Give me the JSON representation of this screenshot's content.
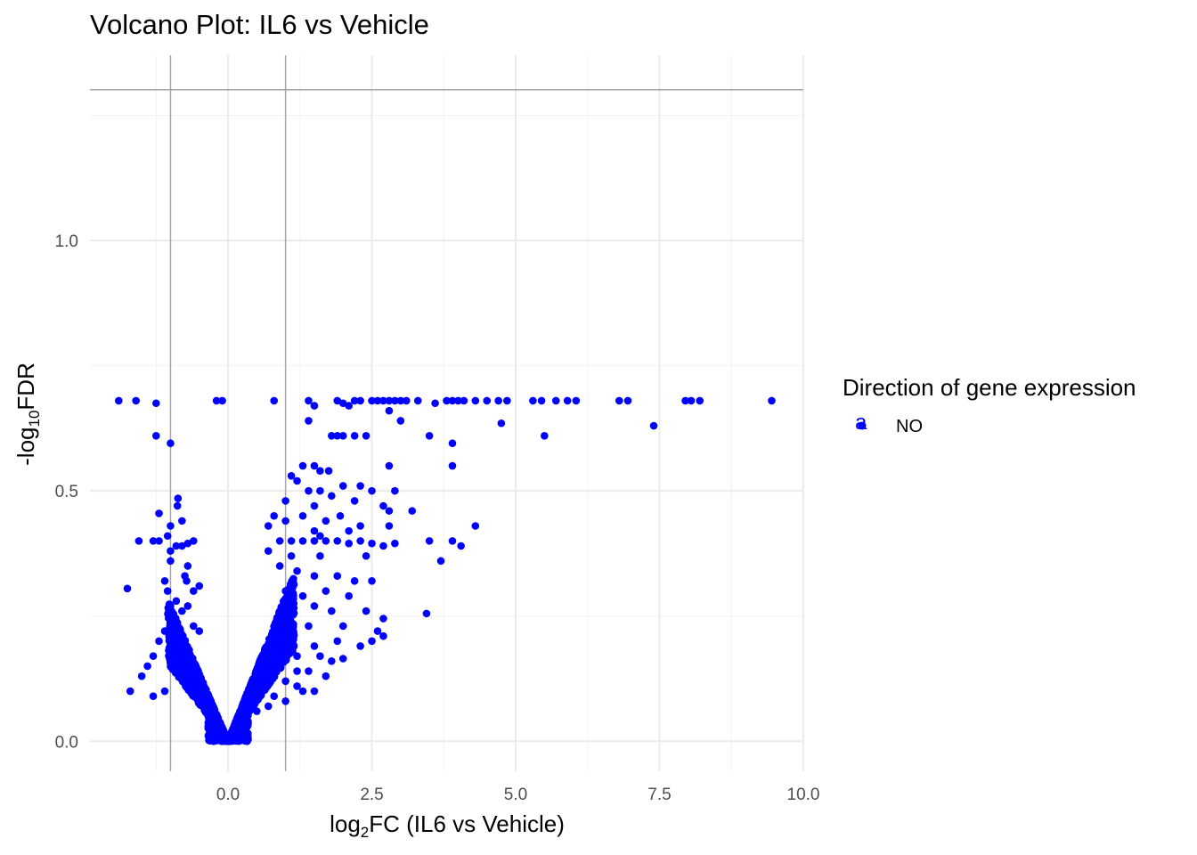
{
  "chart_data": {
    "type": "scatter",
    "title": "Volcano Plot: IL6 vs Vehicle",
    "xlabel_main": "log",
    "xlabel_sub": "2",
    "xlabel_rest": "FC (IL6 vs Vehicle)",
    "ylabel_main": "-log",
    "ylabel_sub": "10",
    "ylabel_rest": "FDR",
    "xlim": [
      -2.4,
      10.0
    ],
    "ylim": [
      -0.06,
      1.37
    ],
    "x_ticks": [
      "0.0",
      "2.5",
      "5.0",
      "7.5",
      "10.0"
    ],
    "x_tick_values": [
      0,
      2.5,
      5,
      7.5,
      10
    ],
    "x_minor_values": [
      -1.25,
      1.25,
      3.75,
      6.25,
      8.75
    ],
    "y_ticks": [
      "0.0",
      "0.5",
      "1.0"
    ],
    "y_tick_values": [
      0,
      0.5,
      1.0
    ],
    "y_minor_values": [
      0.25,
      0.75,
      1.25
    ],
    "threshold_lines": {
      "x": [
        -1,
        1
      ],
      "y": 1.301
    },
    "grid": true,
    "legend": {
      "title": "Direction of gene expression",
      "position": "right",
      "entries": [
        {
          "key_glyph": "a",
          "label": "NO",
          "color": "#0000ff"
        }
      ]
    },
    "point_color": "#0000ff",
    "series": [
      {
        "name": "NO",
        "points": [
          [
            -1.9,
            0.68
          ],
          [
            -1.6,
            0.68
          ],
          [
            -1.25,
            0.675
          ],
          [
            -0.2,
            0.68
          ],
          [
            -0.1,
            0.68
          ],
          [
            -1.25,
            0.61
          ],
          [
            -1.0,
            0.595
          ],
          [
            -0.87,
            0.485
          ],
          [
            -0.88,
            0.47
          ],
          [
            -1.2,
            0.455
          ],
          [
            -0.8,
            0.44
          ],
          [
            -1.0,
            0.43
          ],
          [
            -1.05,
            0.41
          ],
          [
            -1.55,
            0.4
          ],
          [
            -1.3,
            0.4
          ],
          [
            -1.2,
            0.4
          ],
          [
            -0.9,
            0.39
          ],
          [
            -0.7,
            0.395
          ],
          [
            -0.6,
            0.4
          ],
          [
            -0.8,
            0.39
          ],
          [
            -1.0,
            0.38
          ],
          [
            -1.0,
            0.36
          ],
          [
            -0.7,
            0.35
          ],
          [
            -0.75,
            0.33
          ],
          [
            -0.72,
            0.32
          ],
          [
            -1.1,
            0.32
          ],
          [
            -0.5,
            0.31
          ],
          [
            -0.6,
            0.3
          ],
          [
            -1.75,
            0.305
          ],
          [
            -1.05,
            0.3
          ],
          [
            -0.9,
            0.28
          ],
          [
            -1.0,
            0.27
          ],
          [
            -0.8,
            0.26
          ],
          [
            -0.7,
            0.27
          ],
          [
            -1.1,
            0.22
          ],
          [
            -1.2,
            0.2
          ],
          [
            -1.3,
            0.17
          ],
          [
            -1.4,
            0.15
          ],
          [
            -1.5,
            0.13
          ],
          [
            -1.7,
            0.1
          ],
          [
            -1.3,
            0.09
          ],
          [
            -1.1,
            0.1
          ],
          [
            -0.6,
            0.23
          ],
          [
            -0.5,
            0.22
          ],
          [
            0.8,
            0.68
          ],
          [
            1.4,
            0.68
          ],
          [
            1.5,
            0.67
          ],
          [
            1.9,
            0.68
          ],
          [
            2.0,
            0.675
          ],
          [
            2.1,
            0.67
          ],
          [
            2.2,
            0.68
          ],
          [
            2.3,
            0.68
          ],
          [
            2.5,
            0.68
          ],
          [
            2.6,
            0.68
          ],
          [
            2.7,
            0.68
          ],
          [
            2.8,
            0.68
          ],
          [
            2.9,
            0.68
          ],
          [
            3.0,
            0.68
          ],
          [
            3.1,
            0.68
          ],
          [
            3.3,
            0.68
          ],
          [
            3.6,
            0.675
          ],
          [
            3.8,
            0.68
          ],
          [
            3.9,
            0.68
          ],
          [
            4.0,
            0.68
          ],
          [
            4.1,
            0.68
          ],
          [
            4.3,
            0.68
          ],
          [
            4.5,
            0.68
          ],
          [
            4.7,
            0.68
          ],
          [
            4.85,
            0.68
          ],
          [
            5.3,
            0.68
          ],
          [
            5.45,
            0.68
          ],
          [
            5.7,
            0.68
          ],
          [
            5.9,
            0.68
          ],
          [
            6.05,
            0.68
          ],
          [
            6.8,
            0.68
          ],
          [
            6.95,
            0.68
          ],
          [
            7.95,
            0.68
          ],
          [
            8.05,
            0.68
          ],
          [
            8.2,
            0.68
          ],
          [
            9.45,
            0.68
          ],
          [
            1.4,
            0.64
          ],
          [
            2.8,
            0.66
          ],
          [
            3.0,
            0.64
          ],
          [
            4.75,
            0.635
          ],
          [
            7.4,
            0.63
          ],
          [
            1.8,
            0.61
          ],
          [
            1.9,
            0.61
          ],
          [
            2.0,
            0.61
          ],
          [
            2.2,
            0.61
          ],
          [
            2.4,
            0.61
          ],
          [
            3.5,
            0.61
          ],
          [
            5.5,
            0.61
          ],
          [
            3.9,
            0.595
          ],
          [
            1.3,
            0.55
          ],
          [
            1.5,
            0.55
          ],
          [
            1.6,
            0.54
          ],
          [
            1.75,
            0.54
          ],
          [
            2.8,
            0.55
          ],
          [
            3.9,
            0.55
          ],
          [
            1.1,
            0.53
          ],
          [
            1.2,
            0.52
          ],
          [
            1.4,
            0.5
          ],
          [
            1.6,
            0.5
          ],
          [
            2.0,
            0.51
          ],
          [
            2.3,
            0.51
          ],
          [
            2.5,
            0.5
          ],
          [
            2.9,
            0.5
          ],
          [
            1.0,
            0.48
          ],
          [
            1.5,
            0.47
          ],
          [
            1.8,
            0.49
          ],
          [
            2.2,
            0.48
          ],
          [
            2.7,
            0.47
          ],
          [
            2.8,
            0.46
          ],
          [
            3.2,
            0.46
          ],
          [
            4.3,
            0.43
          ],
          [
            1.7,
            0.44
          ],
          [
            1.95,
            0.45
          ],
          [
            2.3,
            0.43
          ],
          [
            2.8,
            0.43
          ],
          [
            1.0,
            0.44
          ],
          [
            1.3,
            0.45
          ],
          [
            0.8,
            0.45
          ],
          [
            0.7,
            0.43
          ],
          [
            1.5,
            0.42
          ],
          [
            1.6,
            0.41
          ],
          [
            2.1,
            0.42
          ],
          [
            0.9,
            0.4
          ],
          [
            1.1,
            0.4
          ],
          [
            1.3,
            0.4
          ],
          [
            1.5,
            0.4
          ],
          [
            1.7,
            0.4
          ],
          [
            1.9,
            0.4
          ],
          [
            2.1,
            0.395
          ],
          [
            2.3,
            0.4
          ],
          [
            2.5,
            0.395
          ],
          [
            2.7,
            0.39
          ],
          [
            2.9,
            0.395
          ],
          [
            3.5,
            0.4
          ],
          [
            3.9,
            0.4
          ],
          [
            4.05,
            0.39
          ],
          [
            0.7,
            0.38
          ],
          [
            1.1,
            0.37
          ],
          [
            1.6,
            0.37
          ],
          [
            2.4,
            0.37
          ],
          [
            3.7,
            0.36
          ],
          [
            0.9,
            0.35
          ],
          [
            1.2,
            0.34
          ],
          [
            1.5,
            0.33
          ],
          [
            1.9,
            0.33
          ],
          [
            2.2,
            0.32
          ],
          [
            2.5,
            0.32
          ],
          [
            1.0,
            0.3
          ],
          [
            1.3,
            0.29
          ],
          [
            1.7,
            0.3
          ],
          [
            2.1,
            0.29
          ],
          [
            1.1,
            0.27
          ],
          [
            1.5,
            0.27
          ],
          [
            1.8,
            0.26
          ],
          [
            2.4,
            0.26
          ],
          [
            3.45,
            0.255
          ],
          [
            2.7,
            0.245
          ],
          [
            0.9,
            0.24
          ],
          [
            1.4,
            0.23
          ],
          [
            2.0,
            0.23
          ],
          [
            2.6,
            0.22
          ],
          [
            2.7,
            0.21
          ],
          [
            1.0,
            0.2
          ],
          [
            1.5,
            0.19
          ],
          [
            1.9,
            0.2
          ],
          [
            2.5,
            0.2
          ],
          [
            2.3,
            0.19
          ],
          [
            1.2,
            0.17
          ],
          [
            1.6,
            0.17
          ],
          [
            1.8,
            0.16
          ],
          [
            2.0,
            0.165
          ],
          [
            0.9,
            0.15
          ],
          [
            1.2,
            0.14
          ],
          [
            1.4,
            0.14
          ],
          [
            1.7,
            0.13
          ],
          [
            1.0,
            0.12
          ],
          [
            1.2,
            0.11
          ],
          [
            1.3,
            0.1
          ],
          [
            1.5,
            0.1
          ],
          [
            0.8,
            0.09
          ],
          [
            1.0,
            0.08
          ],
          [
            0.7,
            0.07
          ],
          [
            0.5,
            0.06
          ]
        ]
      }
    ]
  }
}
